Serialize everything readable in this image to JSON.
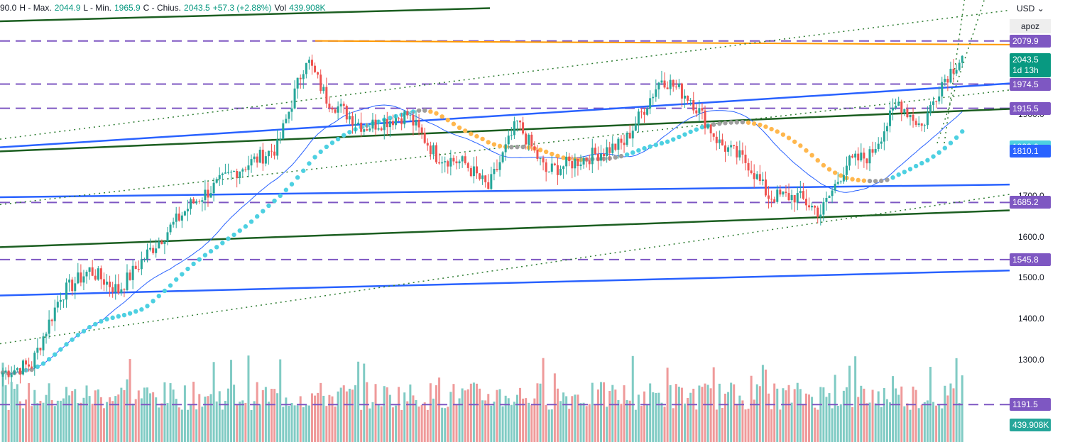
{
  "ohlc": {
    "open_label": "90.0",
    "high_label": "H - Max.",
    "high_value": "2044.9",
    "low_label": "L - Min.",
    "low_value": "1965.9",
    "close_label": "C - Chius.",
    "close_value": "2043.5",
    "change": "+57.3 (+2.88%)",
    "vol_label": "Vol",
    "vol_value": "439.908K"
  },
  "axis": {
    "currency": "USD",
    "scale_button": "apoz",
    "current_price": "2043.5",
    "countdown": "1d 13h"
  },
  "colors": {
    "up": "#26a69a",
    "down": "#ef5350",
    "level": "#7e57c2",
    "blue_line": "#2962ff",
    "green_line": "#1b5e20",
    "orange_line": "#ff9800",
    "ma_cyan": "#4dd0e1",
    "ma_orange": "#ffb74d",
    "ma_gray": "#9e9e9e"
  },
  "chart_data": {
    "type": "line",
    "title": "",
    "ylim": [
      1100,
      2180
    ],
    "y_ticks": [
      "1900.0",
      "1700.0",
      "1600.0",
      "1500.0",
      "1400.0",
      "1300.0"
    ],
    "horizontal_levels": [
      {
        "label": "2079.9",
        "value": 2079.9,
        "color": "#7e57c2"
      },
      {
        "label": "1974.5",
        "value": 1974.5,
        "color": "#7e57c2"
      },
      {
        "label": "1915.5",
        "value": 1915.5,
        "color": "#7e57c2"
      },
      {
        "label": "1685.2",
        "value": 1685.2,
        "color": "#7e57c2"
      },
      {
        "label": "1545.8",
        "value": 1545.8,
        "color": "#7e57c2"
      },
      {
        "label": "1191.5",
        "value": 1191.5,
        "color": "#7e57c2"
      }
    ],
    "ma_labels": [
      {
        "label": "1822.0",
        "value": 1822.0,
        "color": "#4dd0e1"
      },
      {
        "label": "1810.1",
        "value": 1810.1,
        "color": "#2962ff"
      }
    ],
    "volume_label": {
      "label": "439.908K",
      "color": "#26a69a"
    },
    "last_close": 2043.5,
    "path_points": [
      {
        "t": 0,
        "y": 1270
      },
      {
        "t": 10,
        "y": 1290
      },
      {
        "t": 20,
        "y": 1460
      },
      {
        "t": 30,
        "y": 1520
      },
      {
        "t": 40,
        "y": 1470
      },
      {
        "t": 50,
        "y": 1560
      },
      {
        "t": 65,
        "y": 1680
      },
      {
        "t": 80,
        "y": 1760
      },
      {
        "t": 95,
        "y": 1820
      },
      {
        "t": 105,
        "y": 2040
      },
      {
        "t": 112,
        "y": 1940
      },
      {
        "t": 125,
        "y": 1870
      },
      {
        "t": 140,
        "y": 1900
      },
      {
        "t": 150,
        "y": 1800
      },
      {
        "t": 160,
        "y": 1780
      },
      {
        "t": 168,
        "y": 1720
      },
      {
        "t": 178,
        "y": 1880
      },
      {
        "t": 188,
        "y": 1760
      },
      {
        "t": 200,
        "y": 1790
      },
      {
        "t": 215,
        "y": 1830
      },
      {
        "t": 228,
        "y": 1990
      },
      {
        "t": 238,
        "y": 1940
      },
      {
        "t": 248,
        "y": 1830
      },
      {
        "t": 258,
        "y": 1780
      },
      {
        "t": 265,
        "y": 1700
      },
      {
        "t": 275,
        "y": 1700
      },
      {
        "t": 283,
        "y": 1660
      },
      {
        "t": 292,
        "y": 1780
      },
      {
        "t": 300,
        "y": 1800
      },
      {
        "t": 310,
        "y": 1930
      },
      {
        "t": 318,
        "y": 1870
      },
      {
        "t": 325,
        "y": 1980
      },
      {
        "t": 332,
        "y": 2043.5
      }
    ]
  }
}
